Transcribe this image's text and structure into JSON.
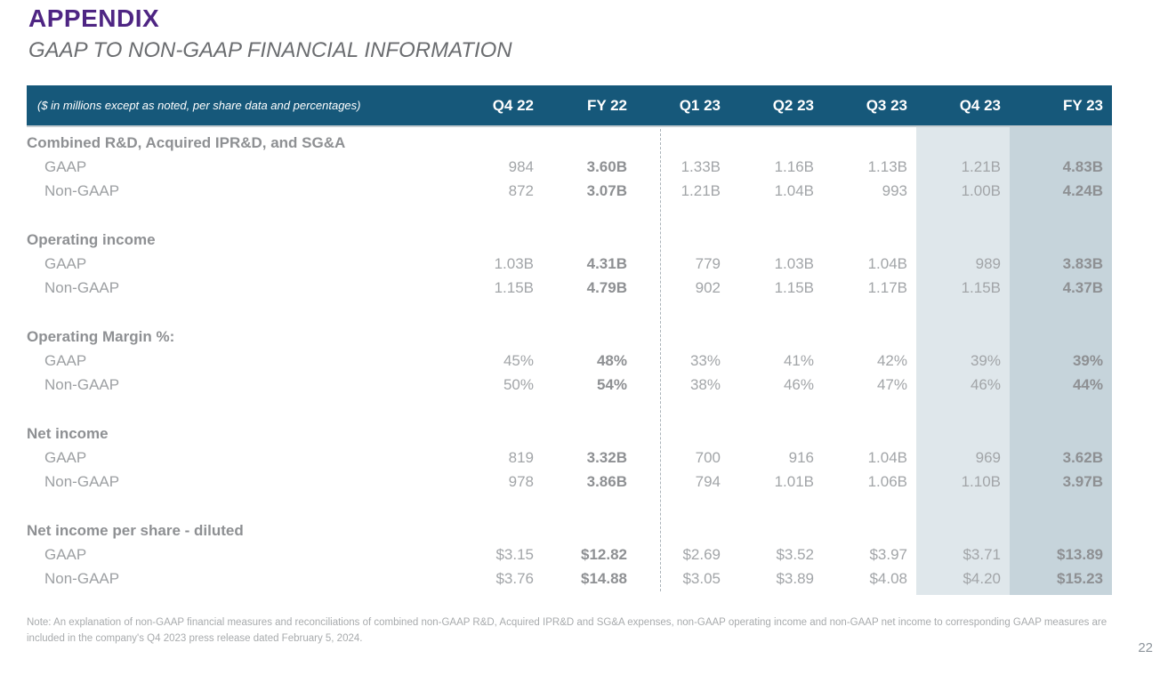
{
  "slide": {
    "title": "APPENDIX",
    "subtitle": "GAAP TO NON-GAAP FINANCIAL INFORMATION",
    "page_number": "22",
    "note": "Note: An explanation of non-GAAP financial measures and reconciliations of combined non-GAAP R&D, Acquired IPR&D and SG&A expenses, non-GAAP operating income and non-GAAP net income to corresponding GAAP measures are included in the company's Q4 2023 press release dated February 5, 2024."
  },
  "colors": {
    "title_purple": "#4e2583",
    "header_teal": "#16587a",
    "highlight_light": "#dfe7eb",
    "highlight_dark": "#c6d4db"
  },
  "table": {
    "unit_label": "($ in millions except as noted, per share data and percentages)",
    "columns": [
      "Q4 22",
      "FY 22",
      "Q1 23",
      "Q2 23",
      "Q3 23",
      "Q4 23",
      "FY 23"
    ],
    "bold_column_indexes": [
      1,
      6
    ],
    "highlighted_columns": [
      "Q4 23",
      "FY 23"
    ],
    "sections": [
      {
        "title": "Combined R&D, Acquired IPR&D, and SG&A",
        "rows": [
          {
            "label": "GAAP",
            "values": [
              "984",
              "3.60B",
              "1.33B",
              "1.16B",
              "1.13B",
              "1.21B",
              "4.83B"
            ]
          },
          {
            "label": "Non-GAAP",
            "values": [
              "872",
              "3.07B",
              "1.21B",
              "1.04B",
              "993",
              "1.00B",
              "4.24B"
            ]
          }
        ]
      },
      {
        "title": "Operating income",
        "rows": [
          {
            "label": "GAAP",
            "values": [
              "1.03B",
              "4.31B",
              "779",
              "1.03B",
              "1.04B",
              "989",
              "3.83B"
            ]
          },
          {
            "label": "Non-GAAP",
            "values": [
              "1.15B",
              "4.79B",
              "902",
              "1.15B",
              "1.17B",
              "1.15B",
              "4.37B"
            ]
          }
        ]
      },
      {
        "title": "Operating Margin %:",
        "rows": [
          {
            "label": "GAAP",
            "values": [
              "45%",
              "48%",
              "33%",
              "41%",
              "42%",
              "39%",
              "39%"
            ]
          },
          {
            "label": "Non-GAAP",
            "values": [
              "50%",
              "54%",
              "38%",
              "46%",
              "47%",
              "46%",
              "44%"
            ]
          }
        ]
      },
      {
        "title": "Net income",
        "rows": [
          {
            "label": "GAAP",
            "values": [
              "819",
              "3.32B",
              "700",
              "916",
              "1.04B",
              "969",
              "3.62B"
            ]
          },
          {
            "label": "Non-GAAP",
            "values": [
              "978",
              "3.86B",
              "794",
              "1.01B",
              "1.06B",
              "1.10B",
              "3.97B"
            ]
          }
        ]
      },
      {
        "title": "Net income per share - diluted",
        "rows": [
          {
            "label": "GAAP",
            "values": [
              "$3.15",
              "$12.82",
              "$2.69",
              "$3.52",
              "$3.97",
              "$3.71",
              "$13.89"
            ]
          },
          {
            "label": "Non-GAAP",
            "values": [
              "$3.76",
              "$14.88",
              "$3.05",
              "$3.89",
              "$4.08",
              "$4.20",
              "$15.23"
            ]
          }
        ]
      }
    ]
  }
}
